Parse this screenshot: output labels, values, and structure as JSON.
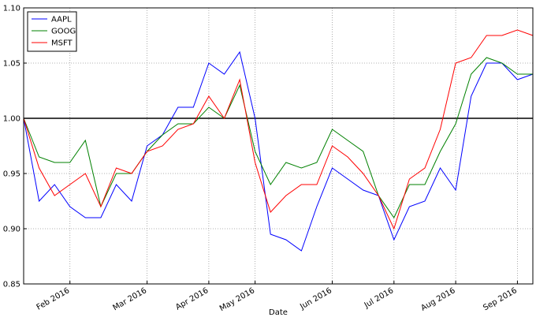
{
  "chart_data": {
    "type": "line",
    "xlabel": "Date",
    "categories": [
      null,
      null,
      null,
      "Feb 2016",
      null,
      null,
      null,
      null,
      "Mar 2016",
      null,
      null,
      null,
      "Apr 2016",
      null,
      null,
      "May 2016",
      null,
      null,
      null,
      null,
      "Jun 2016",
      null,
      null,
      null,
      "Jul 2016",
      null,
      null,
      null,
      "Aug 2016",
      null,
      null,
      null,
      "Sep 2016",
      null
    ],
    "series": [
      {
        "name": "AAPL",
        "color": "#0000ff",
        "values": [
          1.0,
          0.925,
          0.94,
          0.92,
          0.91,
          0.91,
          0.94,
          0.925,
          0.975,
          0.985,
          1.01,
          1.01,
          1.05,
          1.04,
          1.06,
          1.0,
          0.895,
          0.89,
          0.88,
          0.92,
          0.955,
          0.945,
          0.935,
          0.93,
          0.89,
          0.92,
          0.925,
          0.955,
          0.935,
          1.02,
          1.05,
          1.05,
          1.035,
          1.04
        ]
      },
      {
        "name": "GOOG",
        "color": "#008000",
        "values": [
          1.0,
          0.965,
          0.96,
          0.96,
          0.98,
          0.92,
          0.95,
          0.95,
          0.97,
          0.985,
          0.995,
          0.995,
          1.01,
          1.0,
          1.03,
          0.97,
          0.94,
          0.96,
          0.955,
          0.96,
          0.99,
          0.98,
          0.97,
          0.93,
          0.91,
          0.94,
          0.94,
          0.97,
          0.995,
          1.04,
          1.055,
          1.05,
          1.04,
          1.04
        ]
      },
      {
        "name": "MSFT",
        "color": "#ff0000",
        "values": [
          1.0,
          0.955,
          0.93,
          0.94,
          0.95,
          0.92,
          0.955,
          0.95,
          0.97,
          0.975,
          0.99,
          0.995,
          1.02,
          1.0,
          1.035,
          0.96,
          0.915,
          0.93,
          0.94,
          0.94,
          0.975,
          0.965,
          0.95,
          0.93,
          0.9,
          0.945,
          0.955,
          0.99,
          1.05,
          1.055,
          1.075,
          1.075,
          1.08,
          1.075
        ]
      }
    ],
    "ylim": [
      0.85,
      1.1
    ],
    "yticks": [
      0.85,
      {
        "value": 0.9,
        "label": "0.90"
      },
      0.95,
      {
        "value": 1.0,
        "label": "1.00"
      },
      1.05,
      {
        "value": 1.1,
        "label": "1.10"
      }
    ],
    "hline": 1.0,
    "grid": true,
    "legend": "upper left"
  }
}
